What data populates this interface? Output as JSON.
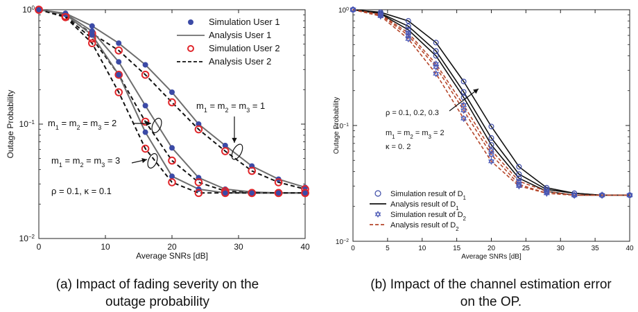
{
  "captions": {
    "a": [
      "(a) Impact of fading severity on the",
      "outage probability"
    ],
    "b": [
      "(b) Impact of the channel estimation error",
      "on the OP."
    ]
  },
  "chart_data": [
    {
      "type": "line",
      "title": "",
      "xlabel": "Average SNRs [dB]",
      "ylabel": "Outage Probability",
      "xlim": [
        0,
        40
      ],
      "ylim": [
        0.01,
        1
      ],
      "yscale": "log",
      "xticks": [
        0,
        10,
        20,
        30,
        40
      ],
      "grid": false,
      "legend_position": "top-right",
      "legend": [
        {
          "label": "Simulation User 1",
          "style": "dot",
          "color": "#3b4aa6"
        },
        {
          "label": "Analysis User 1",
          "style": "solid",
          "color": "#6e6e6e"
        },
        {
          "label": "Simulation User 2",
          "style": "ring",
          "color": "#e0262b"
        },
        {
          "label": "Analysis User 2",
          "style": "dashed",
          "color": "#111111"
        }
      ],
      "x": [
        0,
        4,
        8,
        12,
        16,
        20,
        24,
        28,
        32,
        36,
        40
      ],
      "series": [
        {
          "group": "m=1",
          "user": 1,
          "values": [
            1,
            0.93,
            0.72,
            0.51,
            0.33,
            0.19,
            0.1,
            0.065,
            0.043,
            0.033,
            0.028
          ]
        },
        {
          "group": "m=1",
          "user": 2,
          "values": [
            1,
            0.88,
            0.62,
            0.44,
            0.27,
            0.155,
            0.09,
            0.058,
            0.039,
            0.031,
            0.027
          ]
        },
        {
          "group": "m=2",
          "user": 1,
          "values": [
            1,
            0.92,
            0.65,
            0.35,
            0.145,
            0.062,
            0.034,
            0.027,
            0.0255,
            0.025,
            0.025
          ]
        },
        {
          "group": "m=2",
          "user": 2,
          "values": [
            1,
            0.87,
            0.56,
            0.27,
            0.105,
            0.048,
            0.031,
            0.026,
            0.025,
            0.025,
            0.025
          ]
        },
        {
          "group": "m=3",
          "user": 1,
          "values": [
            1,
            0.91,
            0.6,
            0.27,
            0.085,
            0.035,
            0.027,
            0.025,
            0.025,
            0.025,
            0.025
          ]
        },
        {
          "group": "m=3",
          "user": 2,
          "values": [
            1,
            0.86,
            0.51,
            0.19,
            0.061,
            0.031,
            0.025,
            0.025,
            0.025,
            0.025,
            0.025
          ]
        }
      ],
      "annotations": [
        "m₁ = m₂ = m₃ = 1",
        "m₁ = m₂ = m₃ = 2",
        "m₁ = m₂ = m₃ = 3",
        "ρ = 0.1, κ = 0.1"
      ]
    },
    {
      "type": "line",
      "title": "",
      "xlabel": "Average SNRs [dB]",
      "ylabel": "Outage Probability",
      "xlim": [
        0,
        40
      ],
      "ylim": [
        0.01,
        1
      ],
      "yscale": "log",
      "xticks": [
        0,
        5,
        10,
        15,
        20,
        25,
        30,
        35,
        40
      ],
      "grid": false,
      "legend_position": "bottom-left",
      "legend": [
        {
          "label": "Simulation result of D₁",
          "style": "ring",
          "color": "#3b4aa6"
        },
        {
          "label": "Analysis result of D₁",
          "style": "solid",
          "color": "#111111"
        },
        {
          "label": "Simulation result of D₂",
          "style": "star",
          "color": "#4a57b5"
        },
        {
          "label": "Analysis result of D₂",
          "style": "dashed",
          "color": "#b5462a"
        }
      ],
      "x": [
        0,
        4,
        8,
        12,
        16,
        20,
        24,
        28,
        32,
        36,
        40
      ],
      "series": [
        {
          "group": "rho=0.3",
          "user": 1,
          "values": [
            1,
            0.95,
            0.8,
            0.52,
            0.24,
            0.098,
            0.044,
            0.029,
            0.026,
            0.025,
            0.025
          ]
        },
        {
          "group": "rho=0.2",
          "user": 1,
          "values": [
            1,
            0.93,
            0.72,
            0.44,
            0.195,
            0.078,
            0.038,
            0.028,
            0.026,
            0.025,
            0.025
          ]
        },
        {
          "group": "rho=0.1",
          "user": 1,
          "values": [
            1,
            0.92,
            0.67,
            0.4,
            0.175,
            0.068,
            0.035,
            0.027,
            0.025,
            0.025,
            0.025
          ]
        },
        {
          "group": "rho=0.3",
          "user": 2,
          "values": [
            1,
            0.91,
            0.63,
            0.34,
            0.15,
            0.061,
            0.033,
            0.027,
            0.025,
            0.025,
            0.025
          ]
        },
        {
          "group": "rho=0.2",
          "user": 2,
          "values": [
            1,
            0.9,
            0.6,
            0.32,
            0.135,
            0.056,
            0.031,
            0.026,
            0.025,
            0.025,
            0.025
          ]
        },
        {
          "group": "rho=0.1",
          "user": 2,
          "values": [
            1,
            0.88,
            0.56,
            0.28,
            0.115,
            0.049,
            0.03,
            0.026,
            0.025,
            0.025,
            0.025
          ]
        }
      ],
      "annotations": [
        "ρ = 0.1, 0.2, 0.3",
        "m₁ = m₂ = m₃ = 2",
        "κ = 0. 2"
      ]
    }
  ]
}
